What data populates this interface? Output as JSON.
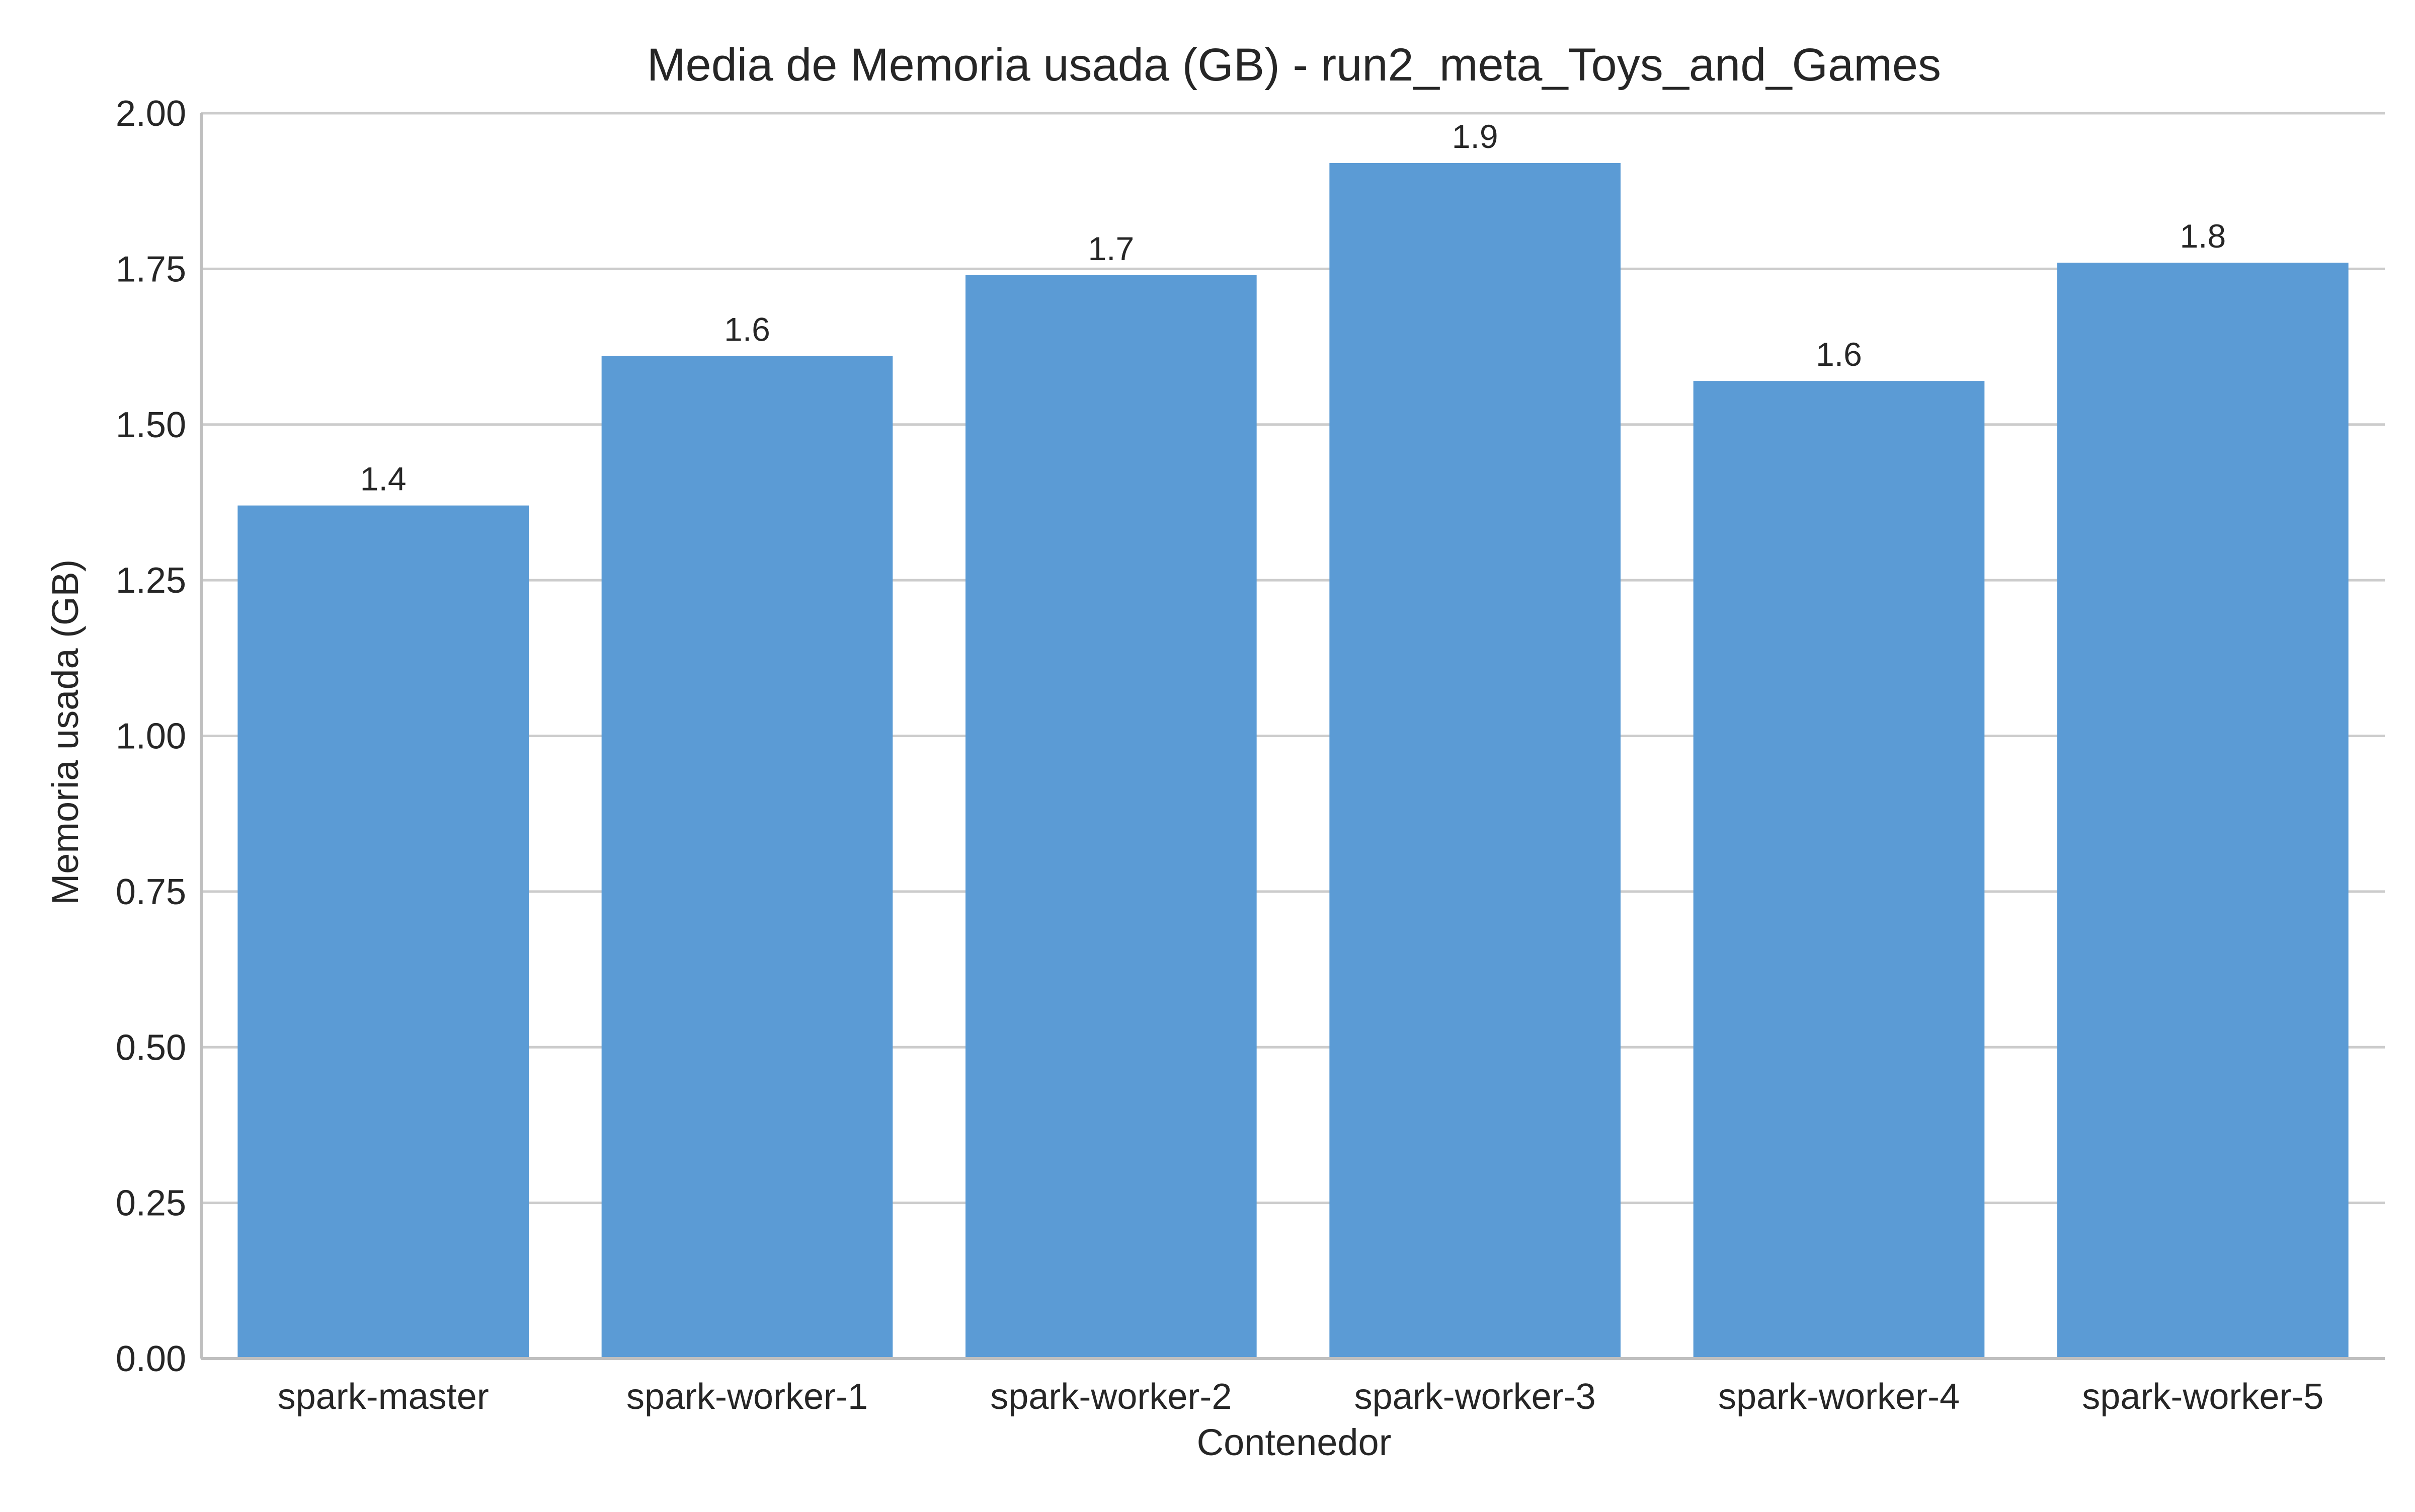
{
  "chart_data": {
    "type": "bar",
    "title": "Media de Memoria usada (GB) - run2_meta_Toys_and_Games",
    "xlabel": "Contenedor",
    "ylabel": "Memoria usada (GB)",
    "categories": [
      "spark-master",
      "spark-worker-1",
      "spark-worker-2",
      "spark-worker-3",
      "spark-worker-4",
      "spark-worker-5"
    ],
    "values": [
      1.37,
      1.61,
      1.74,
      1.92,
      1.57,
      1.76
    ],
    "data_labels": [
      "1.4",
      "1.6",
      "1.7",
      "1.9",
      "1.6",
      "1.8"
    ],
    "ylim": [
      0,
      2.0
    ],
    "yticks": [
      "0.00",
      "0.25",
      "0.50",
      "0.75",
      "1.00",
      "1.25",
      "1.50",
      "1.75",
      "2.00"
    ],
    "grid": "horizontal",
    "colors": {
      "bar": "#5b9bd5",
      "grid": "#cccccc",
      "axis": "#bfbfbf",
      "text": "#262626"
    }
  }
}
